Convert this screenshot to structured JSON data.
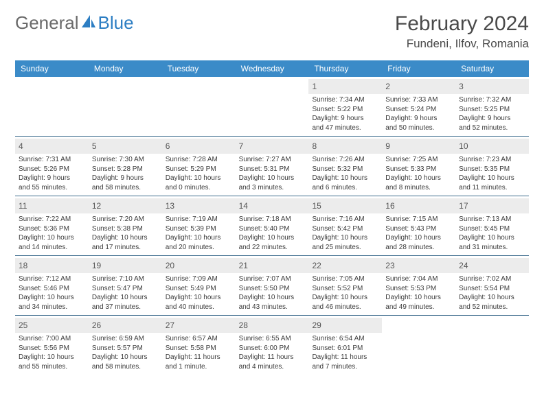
{
  "logo": {
    "text1": "General",
    "text2": "Blue"
  },
  "header": {
    "title": "February 2024",
    "location": "Fundeni, Ilfov, Romania"
  },
  "colors": {
    "header_bar": "#3b8bc8",
    "week_divider": "#3b6a8c",
    "daynum_bg": "#ececec",
    "text": "#3a3a3a",
    "logo_gray": "#6a6a6a",
    "logo_blue": "#2d7ec3"
  },
  "weekdays": [
    "Sunday",
    "Monday",
    "Tuesday",
    "Wednesday",
    "Thursday",
    "Friday",
    "Saturday"
  ],
  "weeks": [
    [
      {
        "n": ""
      },
      {
        "n": ""
      },
      {
        "n": ""
      },
      {
        "n": ""
      },
      {
        "n": "1",
        "sr": "Sunrise: 7:34 AM",
        "ss": "Sunset: 5:22 PM",
        "d1": "Daylight: 9 hours",
        "d2": "and 47 minutes."
      },
      {
        "n": "2",
        "sr": "Sunrise: 7:33 AM",
        "ss": "Sunset: 5:24 PM",
        "d1": "Daylight: 9 hours",
        "d2": "and 50 minutes."
      },
      {
        "n": "3",
        "sr": "Sunrise: 7:32 AM",
        "ss": "Sunset: 5:25 PM",
        "d1": "Daylight: 9 hours",
        "d2": "and 52 minutes."
      }
    ],
    [
      {
        "n": "4",
        "sr": "Sunrise: 7:31 AM",
        "ss": "Sunset: 5:26 PM",
        "d1": "Daylight: 9 hours",
        "d2": "and 55 minutes."
      },
      {
        "n": "5",
        "sr": "Sunrise: 7:30 AM",
        "ss": "Sunset: 5:28 PM",
        "d1": "Daylight: 9 hours",
        "d2": "and 58 minutes."
      },
      {
        "n": "6",
        "sr": "Sunrise: 7:28 AM",
        "ss": "Sunset: 5:29 PM",
        "d1": "Daylight: 10 hours",
        "d2": "and 0 minutes."
      },
      {
        "n": "7",
        "sr": "Sunrise: 7:27 AM",
        "ss": "Sunset: 5:31 PM",
        "d1": "Daylight: 10 hours",
        "d2": "and 3 minutes."
      },
      {
        "n": "8",
        "sr": "Sunrise: 7:26 AM",
        "ss": "Sunset: 5:32 PM",
        "d1": "Daylight: 10 hours",
        "d2": "and 6 minutes."
      },
      {
        "n": "9",
        "sr": "Sunrise: 7:25 AM",
        "ss": "Sunset: 5:33 PM",
        "d1": "Daylight: 10 hours",
        "d2": "and 8 minutes."
      },
      {
        "n": "10",
        "sr": "Sunrise: 7:23 AM",
        "ss": "Sunset: 5:35 PM",
        "d1": "Daylight: 10 hours",
        "d2": "and 11 minutes."
      }
    ],
    [
      {
        "n": "11",
        "sr": "Sunrise: 7:22 AM",
        "ss": "Sunset: 5:36 PM",
        "d1": "Daylight: 10 hours",
        "d2": "and 14 minutes."
      },
      {
        "n": "12",
        "sr": "Sunrise: 7:20 AM",
        "ss": "Sunset: 5:38 PM",
        "d1": "Daylight: 10 hours",
        "d2": "and 17 minutes."
      },
      {
        "n": "13",
        "sr": "Sunrise: 7:19 AM",
        "ss": "Sunset: 5:39 PM",
        "d1": "Daylight: 10 hours",
        "d2": "and 20 minutes."
      },
      {
        "n": "14",
        "sr": "Sunrise: 7:18 AM",
        "ss": "Sunset: 5:40 PM",
        "d1": "Daylight: 10 hours",
        "d2": "and 22 minutes."
      },
      {
        "n": "15",
        "sr": "Sunrise: 7:16 AM",
        "ss": "Sunset: 5:42 PM",
        "d1": "Daylight: 10 hours",
        "d2": "and 25 minutes."
      },
      {
        "n": "16",
        "sr": "Sunrise: 7:15 AM",
        "ss": "Sunset: 5:43 PM",
        "d1": "Daylight: 10 hours",
        "d2": "and 28 minutes."
      },
      {
        "n": "17",
        "sr": "Sunrise: 7:13 AM",
        "ss": "Sunset: 5:45 PM",
        "d1": "Daylight: 10 hours",
        "d2": "and 31 minutes."
      }
    ],
    [
      {
        "n": "18",
        "sr": "Sunrise: 7:12 AM",
        "ss": "Sunset: 5:46 PM",
        "d1": "Daylight: 10 hours",
        "d2": "and 34 minutes."
      },
      {
        "n": "19",
        "sr": "Sunrise: 7:10 AM",
        "ss": "Sunset: 5:47 PM",
        "d1": "Daylight: 10 hours",
        "d2": "and 37 minutes."
      },
      {
        "n": "20",
        "sr": "Sunrise: 7:09 AM",
        "ss": "Sunset: 5:49 PM",
        "d1": "Daylight: 10 hours",
        "d2": "and 40 minutes."
      },
      {
        "n": "21",
        "sr": "Sunrise: 7:07 AM",
        "ss": "Sunset: 5:50 PM",
        "d1": "Daylight: 10 hours",
        "d2": "and 43 minutes."
      },
      {
        "n": "22",
        "sr": "Sunrise: 7:05 AM",
        "ss": "Sunset: 5:52 PM",
        "d1": "Daylight: 10 hours",
        "d2": "and 46 minutes."
      },
      {
        "n": "23",
        "sr": "Sunrise: 7:04 AM",
        "ss": "Sunset: 5:53 PM",
        "d1": "Daylight: 10 hours",
        "d2": "and 49 minutes."
      },
      {
        "n": "24",
        "sr": "Sunrise: 7:02 AM",
        "ss": "Sunset: 5:54 PM",
        "d1": "Daylight: 10 hours",
        "d2": "and 52 minutes."
      }
    ],
    [
      {
        "n": "25",
        "sr": "Sunrise: 7:00 AM",
        "ss": "Sunset: 5:56 PM",
        "d1": "Daylight: 10 hours",
        "d2": "and 55 minutes."
      },
      {
        "n": "26",
        "sr": "Sunrise: 6:59 AM",
        "ss": "Sunset: 5:57 PM",
        "d1": "Daylight: 10 hours",
        "d2": "and 58 minutes."
      },
      {
        "n": "27",
        "sr": "Sunrise: 6:57 AM",
        "ss": "Sunset: 5:58 PM",
        "d1": "Daylight: 11 hours",
        "d2": "and 1 minute."
      },
      {
        "n": "28",
        "sr": "Sunrise: 6:55 AM",
        "ss": "Sunset: 6:00 PM",
        "d1": "Daylight: 11 hours",
        "d2": "and 4 minutes."
      },
      {
        "n": "29",
        "sr": "Sunrise: 6:54 AM",
        "ss": "Sunset: 6:01 PM",
        "d1": "Daylight: 11 hours",
        "d2": "and 7 minutes."
      },
      {
        "n": ""
      },
      {
        "n": ""
      }
    ]
  ]
}
